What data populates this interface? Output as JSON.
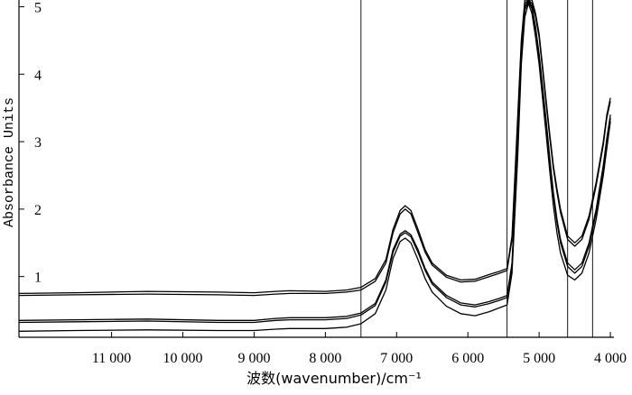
{
  "chart_data": {
    "type": "line",
    "title": "",
    "xlabel": "波数(wavenumber)/cm⁻¹",
    "ylabel": "Absorbance Units",
    "xlim": [
      12300,
      3950
    ],
    "ylim": [
      0.1,
      5.1
    ],
    "x_reversed": true,
    "xticks": [
      11000,
      10000,
      9000,
      8000,
      7000,
      6000,
      5000,
      4000
    ],
    "xtick_labels": [
      "11 000",
      "10 000",
      "9 000",
      "8 000",
      "7 000",
      "6 000",
      "5 000",
      "4 000"
    ],
    "yticks": [
      1,
      2,
      3,
      4,
      5
    ],
    "ytick_labels": [
      "1",
      "2",
      "3",
      "4",
      "5"
    ],
    "vertical_markers": [
      7500,
      5450,
      4600,
      4250
    ],
    "grid": false,
    "series": [
      {
        "x": [
          12300,
          11500,
          10500,
          9500,
          9000,
          8700,
          8500,
          8000,
          7700,
          7500,
          7300,
          7150,
          7050,
          6950,
          6880,
          6800,
          6700,
          6600,
          6500,
          6300,
          6100,
          5900,
          5700,
          5550,
          5450,
          5380,
          5300,
          5250,
          5200,
          5150,
          5100,
          5050,
          5000,
          4950,
          4900,
          4850,
          4800,
          4750,
          4700,
          4600,
          4500,
          4400,
          4300,
          4200,
          4100,
          4050,
          4000
        ],
        "y": [
          0.75,
          0.76,
          0.78,
          0.77,
          0.76,
          0.78,
          0.79,
          0.78,
          0.8,
          0.84,
          0.97,
          1.25,
          1.7,
          1.98,
          2.05,
          1.98,
          1.7,
          1.4,
          1.2,
          1.02,
          0.95,
          0.96,
          1.03,
          1.08,
          1.12,
          1.6,
          3.4,
          4.5,
          5.1,
          5.1,
          5.1,
          4.9,
          4.6,
          4.1,
          3.6,
          3.1,
          2.65,
          2.3,
          2.0,
          1.6,
          1.5,
          1.6,
          1.9,
          2.4,
          3.0,
          3.4,
          3.65
        ]
      },
      {
        "x": [
          12300,
          11500,
          10500,
          9500,
          9000,
          8700,
          8500,
          8000,
          7700,
          7500,
          7300,
          7150,
          7050,
          6950,
          6880,
          6800,
          6700,
          6600,
          6500,
          6300,
          6100,
          5900,
          5700,
          5550,
          5450,
          5380,
          5300,
          5250,
          5200,
          5150,
          5100,
          5050,
          5000,
          4950,
          4900,
          4850,
          4800,
          4750,
          4700,
          4600,
          4500,
          4400,
          4300,
          4200,
          4100,
          4050,
          4000
        ],
        "y": [
          0.72,
          0.73,
          0.74,
          0.73,
          0.72,
          0.74,
          0.75,
          0.75,
          0.77,
          0.8,
          0.93,
          1.2,
          1.65,
          1.93,
          2.0,
          1.93,
          1.65,
          1.36,
          1.17,
          0.99,
          0.92,
          0.93,
          1.0,
          1.05,
          1.09,
          1.55,
          3.3,
          4.45,
          5.05,
          5.1,
          5.05,
          4.85,
          4.55,
          4.05,
          3.55,
          3.05,
          2.6,
          2.25,
          1.95,
          1.55,
          1.45,
          1.55,
          1.85,
          2.35,
          2.95,
          3.35,
          3.6
        ]
      },
      {
        "x": [
          12300,
          11500,
          10500,
          9500,
          9000,
          8700,
          8500,
          8000,
          7700,
          7500,
          7300,
          7150,
          7050,
          6950,
          6880,
          6800,
          6700,
          6600,
          6500,
          6300,
          6100,
          5900,
          5700,
          5550,
          5450,
          5380,
          5300,
          5250,
          5200,
          5150,
          5100,
          5050,
          5000,
          4950,
          4900,
          4850,
          4800,
          4750,
          4700,
          4600,
          4500,
          4400,
          4300,
          4200,
          4100,
          4050,
          4000
        ],
        "y": [
          0.35,
          0.36,
          0.37,
          0.35,
          0.35,
          0.38,
          0.39,
          0.39,
          0.41,
          0.46,
          0.6,
          0.95,
          1.4,
          1.63,
          1.68,
          1.62,
          1.4,
          1.12,
          0.92,
          0.72,
          0.61,
          0.58,
          0.63,
          0.68,
          0.72,
          1.2,
          3.0,
          4.3,
          5.0,
          5.1,
          5.0,
          4.7,
          4.3,
          3.8,
          3.3,
          2.75,
          2.25,
          1.85,
          1.55,
          1.2,
          1.1,
          1.2,
          1.5,
          2.0,
          2.65,
          3.05,
          3.4
        ]
      },
      {
        "x": [
          12300,
          11500,
          10500,
          9500,
          9000,
          8700,
          8500,
          8000,
          7700,
          7500,
          7300,
          7150,
          7050,
          6950,
          6880,
          6800,
          6700,
          6600,
          6500,
          6300,
          6100,
          5900,
          5700,
          5550,
          5450,
          5380,
          5300,
          5250,
          5200,
          5150,
          5100,
          5050,
          5000,
          4950,
          4900,
          4850,
          4800,
          4750,
          4700,
          4600,
          4500,
          4400,
          4300,
          4200,
          4100,
          4050,
          4000
        ],
        "y": [
          0.32,
          0.33,
          0.34,
          0.32,
          0.32,
          0.35,
          0.36,
          0.36,
          0.38,
          0.43,
          0.57,
          0.92,
          1.36,
          1.6,
          1.65,
          1.59,
          1.36,
          1.09,
          0.89,
          0.69,
          0.58,
          0.55,
          0.6,
          0.65,
          0.69,
          1.15,
          2.95,
          4.25,
          4.95,
          5.08,
          4.97,
          4.66,
          4.26,
          3.76,
          3.26,
          2.71,
          2.2,
          1.8,
          1.5,
          1.15,
          1.05,
          1.15,
          1.45,
          1.95,
          2.6,
          3.0,
          3.35
        ]
      },
      {
        "x": [
          12300,
          11500,
          10500,
          9500,
          9000,
          8700,
          8500,
          8000,
          7700,
          7500,
          7300,
          7150,
          7050,
          6950,
          6880,
          6800,
          6700,
          6600,
          6500,
          6300,
          6100,
          5900,
          5700,
          5550,
          5450,
          5380,
          5300,
          5250,
          5200,
          5150,
          5100,
          5050,
          5000,
          4950,
          4900,
          4850,
          4800,
          4750,
          4700,
          4600,
          4500,
          4400,
          4300,
          4200,
          4100,
          4050,
          4000
        ],
        "y": [
          0.19,
          0.2,
          0.21,
          0.2,
          0.2,
          0.22,
          0.23,
          0.23,
          0.25,
          0.3,
          0.45,
          0.8,
          1.27,
          1.52,
          1.57,
          1.5,
          1.25,
          0.97,
          0.77,
          0.56,
          0.45,
          0.42,
          0.48,
          0.54,
          0.58,
          1.05,
          2.8,
          4.15,
          4.85,
          5.05,
          4.9,
          4.55,
          4.15,
          3.62,
          3.1,
          2.55,
          2.05,
          1.65,
          1.35,
          1.02,
          0.95,
          1.05,
          1.35,
          1.85,
          2.5,
          2.9,
          3.3
        ]
      }
    ]
  }
}
